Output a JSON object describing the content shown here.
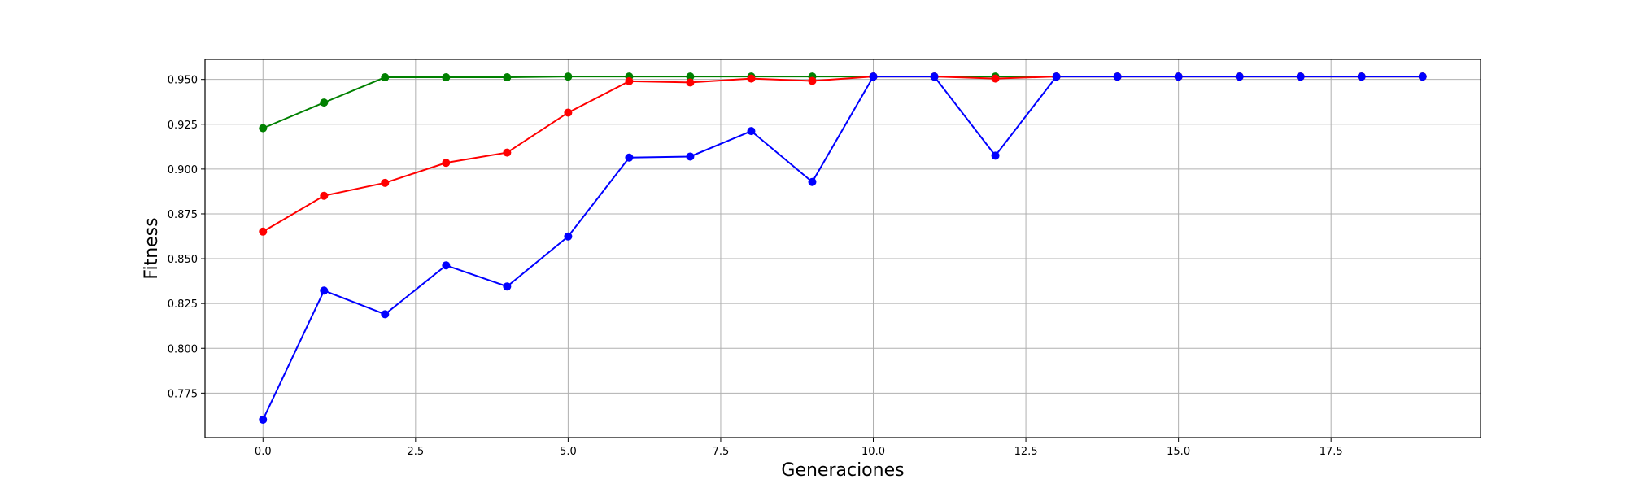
{
  "chart_data": {
    "type": "line",
    "title": "",
    "xlabel": "Generaciones",
    "ylabel": "Fitness",
    "xlim": [
      -0.95,
      19.95
    ],
    "ylim": [
      0.7502,
      0.9612
    ],
    "grid": true,
    "legend": "none",
    "x_ticks": [
      0.0,
      2.5,
      5.0,
      7.5,
      10.0,
      12.5,
      15.0,
      17.5
    ],
    "x_tick_labels": [
      "0.0",
      "2.5",
      "5.0",
      "7.5",
      "10.0",
      "12.5",
      "15.0",
      "17.5"
    ],
    "y_ticks": [
      0.775,
      0.8,
      0.825,
      0.85,
      0.875,
      0.9,
      0.925,
      0.95
    ],
    "y_tick_labels": [
      "0.775",
      "0.800",
      "0.825",
      "0.850",
      "0.875",
      "0.900",
      "0.925",
      "0.950"
    ],
    "x": [
      0,
      1,
      2,
      3,
      4,
      5,
      6,
      7,
      8,
      9,
      10,
      11,
      12,
      13,
      14,
      15,
      16,
      17,
      18,
      19
    ],
    "series": [
      {
        "color": "#008000",
        "values": [
          0.9228,
          0.9371,
          0.9512,
          0.9512,
          0.9512,
          0.9516,
          0.9516,
          0.9516,
          0.9516,
          0.9516,
          0.9516,
          0.9516,
          0.9516,
          0.9516,
          0.9516,
          0.9516,
          0.9516,
          0.9516,
          0.9516,
          0.9516
        ]
      },
      {
        "color": "#ff0000",
        "values": [
          0.8651,
          0.8851,
          0.8923,
          0.9035,
          0.9092,
          0.9315,
          0.949,
          0.9483,
          0.9505,
          0.9492,
          0.9516,
          0.9516,
          0.9505,
          0.9516,
          0.9516,
          0.9516,
          0.9516,
          0.9516,
          0.9516,
          0.9516
        ]
      },
      {
        "color": "#0000ff",
        "values": [
          0.7602,
          0.8322,
          0.819,
          0.8463,
          0.8345,
          0.8624,
          0.9064,
          0.907,
          0.9212,
          0.8928,
          0.9516,
          0.9516,
          0.9075,
          0.9516,
          0.9516,
          0.9516,
          0.9516,
          0.9516,
          0.9516,
          0.9516
        ]
      }
    ]
  }
}
